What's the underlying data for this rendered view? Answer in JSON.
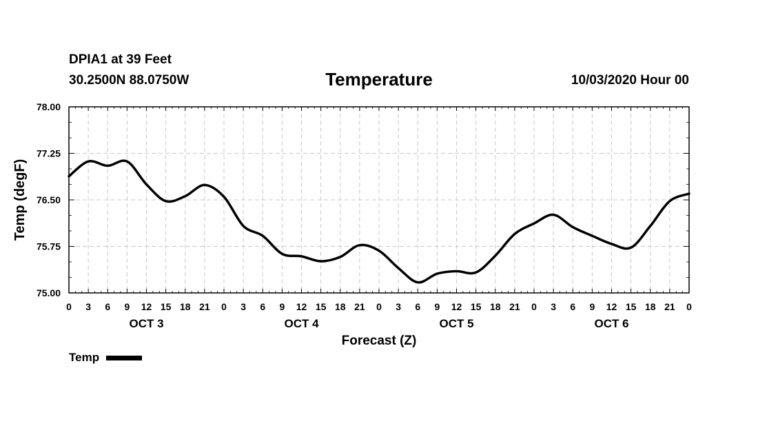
{
  "header": {
    "station": "DPIA1 at 39 Feet",
    "coords": "30.2500N 88.0750W",
    "datetime": "10/03/2020 Hour 00"
  },
  "chart_data": {
    "type": "line",
    "title": "Temperature",
    "xlabel": "Forecast (Z)",
    "ylabel": "Temp (degF)",
    "ylim": [
      75.0,
      78.0
    ],
    "y_ticks": [
      "75.00",
      "75.75",
      "76.50",
      "77.25",
      "78.00"
    ],
    "x_hour_ticks": [
      "0",
      "3",
      "6",
      "9",
      "12",
      "15",
      "18",
      "21",
      "0",
      "3",
      "6",
      "9",
      "12",
      "15",
      "18",
      "21",
      "0",
      "3",
      "6",
      "9",
      "12",
      "15",
      "18",
      "21",
      "0",
      "3",
      "6",
      "9",
      "12",
      "15",
      "18",
      "21",
      "0"
    ],
    "x_day_labels": [
      "OCT 3",
      "OCT 4",
      "OCT 5",
      "OCT 6"
    ],
    "grid": true,
    "legend_position": "bottom-left",
    "x_units": "hours from 10/03/2020 00Z",
    "series": [
      {
        "name": "Temp",
        "color": "#000000",
        "x": [
          0,
          3,
          6,
          9,
          12,
          15,
          18,
          21,
          24,
          27,
          30,
          33,
          36,
          39,
          42,
          45,
          48,
          51,
          54,
          57,
          60,
          63,
          66,
          69,
          72,
          75,
          78,
          81,
          84,
          87,
          90,
          93,
          96
        ],
        "values": [
          76.88,
          77.12,
          77.05,
          77.12,
          76.75,
          76.48,
          76.56,
          76.74,
          76.55,
          76.08,
          75.92,
          75.63,
          75.59,
          75.51,
          75.58,
          75.77,
          75.68,
          75.4,
          75.17,
          75.31,
          75.35,
          75.33,
          75.6,
          75.95,
          76.12,
          76.26,
          76.06,
          75.92,
          75.79,
          75.73,
          76.08,
          76.48,
          76.6
        ]
      }
    ]
  }
}
